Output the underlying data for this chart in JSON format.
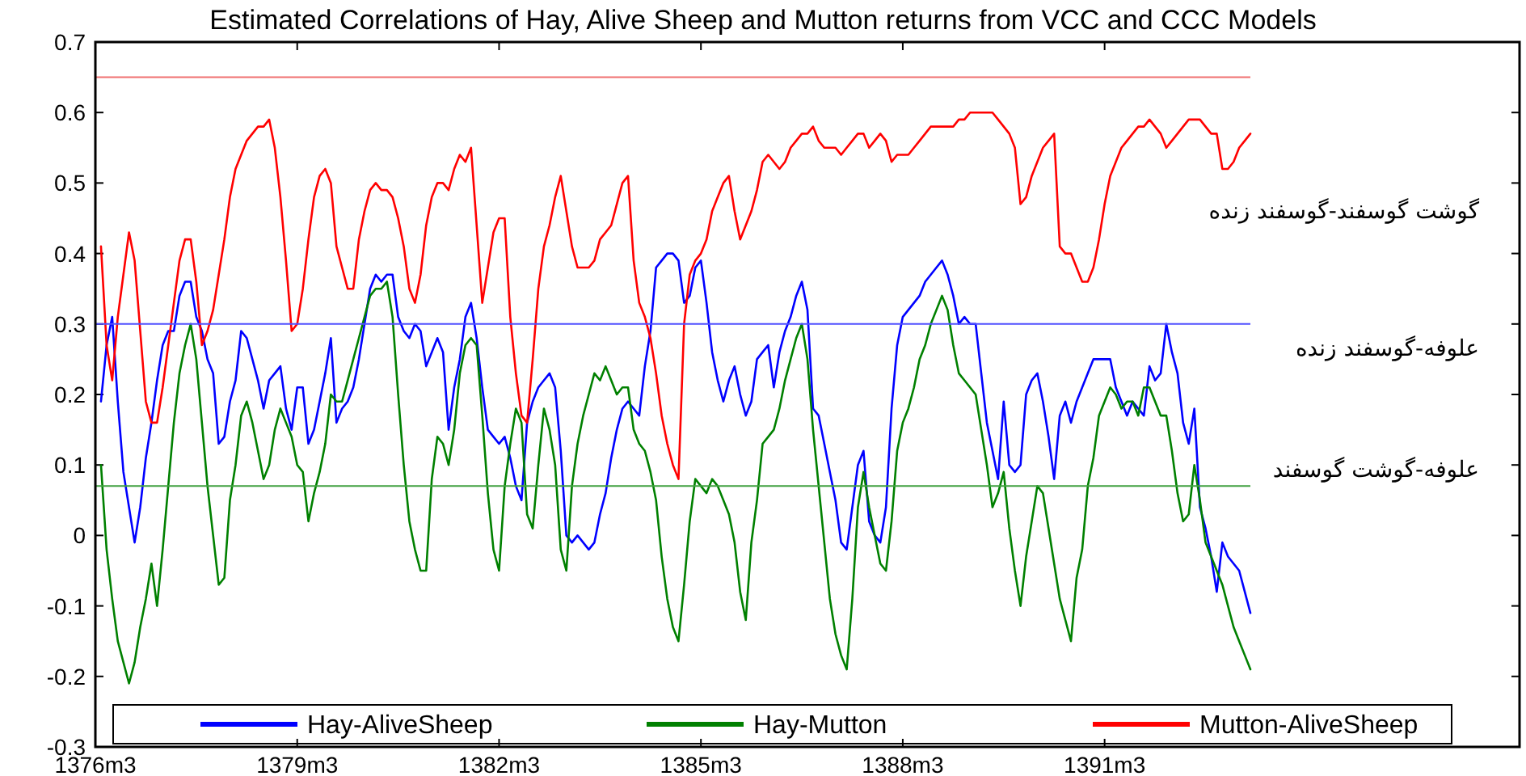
{
  "chart_data": {
    "type": "line",
    "title": "Estimated Correlations of Hay, Alive Sheep and Mutton returns from VCC and CCC Models",
    "categories": [
      "1376m3",
      null,
      null,
      null,
      null,
      null,
      null,
      null,
      null,
      null,
      null,
      null,
      null,
      null,
      null,
      null,
      null,
      null,
      null,
      null,
      null,
      null,
      null,
      null,
      null,
      null,
      null,
      null,
      null,
      null,
      null,
      null,
      null,
      null,
      null,
      null,
      "1379m3",
      null,
      null,
      null,
      null,
      null,
      null,
      null,
      null,
      null,
      null,
      null,
      null,
      null,
      null,
      null,
      null,
      null,
      null,
      null,
      null,
      null,
      null,
      null,
      null,
      null,
      null,
      null,
      null,
      null,
      null,
      null,
      null,
      null,
      null,
      null,
      "1382m3",
      null,
      null,
      null,
      null,
      null,
      null,
      null,
      null,
      null,
      null,
      null,
      null,
      null,
      null,
      null,
      null,
      null,
      null,
      null,
      null,
      null,
      null,
      null,
      null,
      null,
      null,
      null,
      null,
      null,
      null,
      null,
      null,
      null,
      null,
      null,
      "1385m3",
      null,
      null,
      null,
      null,
      null,
      null,
      null,
      null,
      null,
      null,
      null,
      null,
      null,
      null,
      null,
      null,
      null,
      null,
      null,
      null,
      null,
      null,
      null,
      null,
      null,
      null,
      null,
      null,
      null,
      null,
      null,
      null,
      null,
      null,
      null,
      "1388m3",
      null,
      null,
      null,
      null,
      null,
      null,
      null,
      null,
      null,
      null,
      null,
      null,
      null,
      null,
      null,
      null,
      null,
      null,
      null,
      null,
      null,
      null,
      null,
      null,
      null,
      null,
      null,
      null,
      null,
      null,
      null,
      null,
      null,
      null,
      null,
      "1391m3",
      null,
      null,
      null,
      null,
      null,
      null,
      null,
      null,
      null,
      null,
      null,
      null,
      null,
      null,
      null,
      null,
      null,
      null,
      null,
      null,
      null,
      null,
      null,
      null,
      null,
      null,
      null,
      null,
      null,
      null,
      null,
      null,
      null,
      null,
      null,
      null,
      null,
      null,
      null,
      null,
      null,
      null,
      null,
      null,
      null,
      null,
      null,
      null,
      null,
      null,
      null,
      null,
      null,
      null,
      null,
      null,
      null,
      null,
      null,
      null,
      null,
      null,
      null,
      null,
      null,
      null,
      null,
      null,
      null,
      null,
      null,
      null,
      null,
      null
    ],
    "ylim": [
      -0.3,
      0.7
    ],
    "yticks": [
      -0.3,
      -0.2,
      -0.1,
      0,
      0.1,
      0.2,
      0.3,
      0.4,
      0.5,
      0.6,
      0.7
    ],
    "legend": "bottom",
    "series": [
      {
        "name": "Hay-AliveSheep",
        "color": "#0000ff",
        "values": [
          null,
          0.19,
          0.27,
          0.31,
          0.19,
          0.09,
          0.04,
          -0.01,
          0.04,
          0.11,
          0.16,
          0.22,
          0.27,
          0.29,
          0.29,
          0.34,
          0.36,
          0.36,
          0.31,
          0.29,
          0.25,
          0.23,
          0.13,
          0.14,
          0.19,
          0.22,
          0.29,
          0.28,
          0.25,
          0.22,
          0.18,
          0.22,
          0.23,
          0.24,
          0.18,
          0.15,
          0.21,
          0.21,
          0.13,
          0.15,
          0.19,
          0.23,
          0.28,
          0.16,
          0.18,
          0.19,
          0.21,
          0.25,
          0.3,
          0.35,
          0.37,
          0.36,
          0.37,
          0.37,
          0.31,
          0.29,
          0.28,
          0.3,
          0.29,
          0.24,
          0.26,
          0.28,
          0.26,
          0.15,
          0.21,
          0.25,
          0.31,
          0.33,
          0.28,
          0.21,
          0.15,
          0.14,
          0.13,
          0.14,
          0.11,
          0.07,
          0.05,
          0.16,
          0.19,
          0.21,
          0.22,
          0.23,
          0.21,
          0.12,
          0.0,
          -0.01,
          0.0,
          -0.01,
          -0.02,
          -0.01,
          0.03,
          0.06,
          0.11,
          0.15,
          0.18,
          0.19,
          0.18,
          0.17,
          0.24,
          0.29,
          0.38,
          0.39,
          0.4,
          0.4,
          0.39,
          0.33,
          0.34,
          0.38,
          0.39,
          0.33,
          0.26,
          0.22,
          0.19,
          0.22,
          0.24,
          0.2,
          0.17,
          0.19,
          0.25,
          0.26,
          0.27,
          0.21,
          0.26,
          0.29,
          0.31,
          0.34,
          0.36,
          0.32,
          0.18,
          0.17,
          0.13,
          0.09,
          0.05,
          -0.01,
          -0.02,
          0.04,
          0.1,
          0.12,
          0.02,
          0.0,
          -0.01,
          0.04,
          0.18,
          0.27,
          0.31,
          0.32,
          0.33,
          0.34,
          0.36,
          0.37,
          0.38,
          0.39,
          0.37,
          0.34,
          0.3,
          0.31,
          0.3,
          0.3,
          0.23,
          0.16,
          0.12,
          0.08,
          0.19,
          0.1,
          0.09,
          0.1,
          0.2,
          0.22,
          0.23,
          0.19,
          0.14,
          0.08,
          0.17,
          0.19,
          0.16,
          0.19,
          0.21,
          0.23,
          0.25,
          0.25,
          0.25,
          0.25,
          0.21,
          0.19,
          0.17,
          0.19,
          0.18,
          0.17,
          0.24,
          0.22,
          0.23,
          0.3,
          0.26,
          0.23,
          0.16,
          0.13,
          0.18,
          0.04,
          0.01,
          -0.03,
          -0.08,
          -0.01,
          -0.03,
          -0.04,
          -0.05,
          -0.08,
          -0.11,
          null,
          null,
          null,
          null,
          null,
          null,
          null,
          null,
          null,
          null,
          null,
          null,
          null,
          null,
          null,
          null,
          null,
          null,
          null,
          null,
          null,
          null,
          null,
          null,
          null,
          null,
          null,
          null,
          null,
          null,
          null,
          null,
          null,
          null,
          null,
          null,
          null,
          null,
          null,
          null,
          null,
          null,
          null,
          null,
          null,
          null,
          null,
          null
        ]
      },
      {
        "name": "Hay-Mutton",
        "color": "#008000",
        "values": [
          null,
          0.1,
          -0.02,
          -0.09,
          -0.15,
          -0.18,
          -0.21,
          -0.18,
          -0.13,
          -0.09,
          -0.04,
          -0.1,
          -0.02,
          0.07,
          0.16,
          0.23,
          0.27,
          0.3,
          0.25,
          0.16,
          0.07,
          0.0,
          -0.07,
          -0.06,
          0.05,
          0.1,
          0.17,
          0.19,
          0.16,
          0.12,
          0.08,
          0.1,
          0.15,
          0.18,
          0.16,
          0.14,
          0.1,
          0.09,
          0.02,
          0.06,
          0.09,
          0.13,
          0.2,
          0.19,
          0.19,
          0.22,
          0.25,
          0.28,
          0.31,
          0.34,
          0.35,
          0.35,
          0.36,
          0.31,
          0.2,
          0.1,
          0.02,
          -0.02,
          -0.05,
          -0.05,
          0.08,
          0.14,
          0.13,
          0.1,
          0.15,
          0.23,
          0.27,
          0.28,
          0.27,
          0.17,
          0.06,
          -0.02,
          -0.05,
          0.07,
          0.13,
          0.18,
          0.16,
          0.03,
          0.01,
          0.1,
          0.18,
          0.15,
          0.1,
          -0.02,
          -0.05,
          0.07,
          0.13,
          0.17,
          0.2,
          0.23,
          0.22,
          0.24,
          0.22,
          0.2,
          0.21,
          0.21,
          0.15,
          0.13,
          0.12,
          0.09,
          0.05,
          -0.03,
          -0.09,
          -0.13,
          -0.15,
          -0.07,
          0.02,
          0.08,
          0.07,
          0.06,
          0.08,
          0.07,
          0.05,
          0.03,
          -0.01,
          -0.08,
          -0.12,
          -0.01,
          0.05,
          0.13,
          0.14,
          0.15,
          0.18,
          0.22,
          0.25,
          0.28,
          0.3,
          0.25,
          0.15,
          0.07,
          -0.01,
          -0.09,
          -0.14,
          -0.17,
          -0.19,
          -0.09,
          0.04,
          0.09,
          0.04,
          0.0,
          -0.04,
          -0.05,
          0.02,
          0.12,
          0.16,
          0.18,
          0.21,
          0.25,
          0.27,
          0.3,
          0.32,
          0.34,
          0.32,
          0.27,
          0.23,
          0.22,
          0.21,
          0.2,
          0.15,
          0.1,
          0.04,
          0.06,
          0.09,
          0.01,
          -0.05,
          -0.1,
          -0.03,
          0.02,
          0.07,
          0.06,
          0.01,
          -0.04,
          -0.09,
          -0.12,
          -0.15,
          -0.06,
          -0.02,
          0.07,
          0.11,
          0.17,
          0.19,
          0.21,
          0.2,
          0.18,
          0.19,
          0.19,
          0.17,
          0.21,
          0.21,
          0.19,
          0.17,
          0.17,
          0.12,
          0.06,
          0.02,
          0.03,
          0.1,
          0.05,
          -0.01,
          -0.03,
          -0.05,
          -0.07,
          -0.1,
          -0.13,
          -0.15,
          -0.17,
          -0.19,
          null,
          null,
          null,
          null,
          null,
          null,
          null,
          null,
          null,
          null,
          null,
          null,
          null,
          null,
          null,
          null,
          null,
          null,
          null,
          null,
          null,
          null,
          null,
          null,
          null,
          null,
          null,
          null,
          null,
          null,
          null,
          null,
          null,
          null,
          null,
          null,
          null,
          null,
          null,
          null,
          null,
          null,
          null,
          null,
          null,
          null,
          null,
          null
        ]
      },
      {
        "name": "Mutton-AliveSheep",
        "color": "#ff0000",
        "values": [
          null,
          0.41,
          0.27,
          0.22,
          0.31,
          0.37,
          0.43,
          0.39,
          0.29,
          0.19,
          0.16,
          0.16,
          0.21,
          0.27,
          0.33,
          0.39,
          0.42,
          0.42,
          0.36,
          0.27,
          0.29,
          0.32,
          0.37,
          0.42,
          0.48,
          0.52,
          0.54,
          0.56,
          0.57,
          0.58,
          0.58,
          0.59,
          0.55,
          0.48,
          0.39,
          0.29,
          0.3,
          0.35,
          0.42,
          0.48,
          0.51,
          0.52,
          0.5,
          0.41,
          0.38,
          0.35,
          0.35,
          0.42,
          0.46,
          0.49,
          0.5,
          0.49,
          0.49,
          0.48,
          0.45,
          0.41,
          0.35,
          0.33,
          0.37,
          0.44,
          0.48,
          0.5,
          0.5,
          0.49,
          0.52,
          0.54,
          0.53,
          0.55,
          0.44,
          0.33,
          0.38,
          0.43,
          0.45,
          0.45,
          0.31,
          0.23,
          0.17,
          0.16,
          0.25,
          0.35,
          0.41,
          0.44,
          0.48,
          0.51,
          0.46,
          0.41,
          0.38,
          0.38,
          0.38,
          0.39,
          0.42,
          0.43,
          0.44,
          0.47,
          0.5,
          0.51,
          0.39,
          0.33,
          0.31,
          0.28,
          0.23,
          0.17,
          0.13,
          0.1,
          0.08,
          0.3,
          0.37,
          0.39,
          0.4,
          0.42,
          0.46,
          0.48,
          0.5,
          0.51,
          0.46,
          0.42,
          0.44,
          0.46,
          0.49,
          0.53,
          0.54,
          0.53,
          0.52,
          0.53,
          0.55,
          0.56,
          0.57,
          0.57,
          0.58,
          0.56,
          0.55,
          0.55,
          0.55,
          0.54,
          0.55,
          0.56,
          0.57,
          0.57,
          0.55,
          0.56,
          0.57,
          0.56,
          0.53,
          0.54,
          0.54,
          0.54,
          0.55,
          0.56,
          0.57,
          0.58,
          0.58,
          0.58,
          0.58,
          0.58,
          0.59,
          0.59,
          0.6,
          0.6,
          0.6,
          0.6,
          0.6,
          0.59,
          0.58,
          0.57,
          0.55,
          0.47,
          0.48,
          0.51,
          0.53,
          0.55,
          0.56,
          0.57,
          0.41,
          0.4,
          0.4,
          0.38,
          0.36,
          0.36,
          0.38,
          0.42,
          0.47,
          0.51,
          0.53,
          0.55,
          0.56,
          0.57,
          0.58,
          0.58,
          0.59,
          0.58,
          0.57,
          0.55,
          0.56,
          0.57,
          0.58,
          0.59,
          0.59,
          0.59,
          0.58,
          0.57,
          0.57,
          0.52,
          0.52,
          0.53,
          0.55,
          0.56,
          0.57,
          null,
          null,
          null,
          null,
          null,
          null,
          null,
          null,
          null,
          null,
          null,
          null,
          null,
          null,
          null,
          null,
          null,
          null,
          null,
          null,
          null,
          null,
          null,
          null,
          null,
          null,
          null,
          null,
          null,
          null,
          null,
          null,
          null,
          null,
          null,
          null,
          null,
          null,
          null,
          null,
          null,
          null,
          null,
          null,
          null,
          null,
          null,
          null
        ]
      }
    ],
    "ref_lines": [
      {
        "axis": "y",
        "value": 0.65,
        "color": "#f07070"
      },
      {
        "axis": "y",
        "value": 0.3,
        "color": "#5050ff"
      },
      {
        "axis": "y",
        "value": 0.07,
        "color": "#40a040"
      }
    ],
    "annotations": [
      "گوشت گوسفند-گوسفند زنده",
      "علوفه-گوسفند زنده",
      "علوفه-گوشت گوسفند"
    ]
  }
}
